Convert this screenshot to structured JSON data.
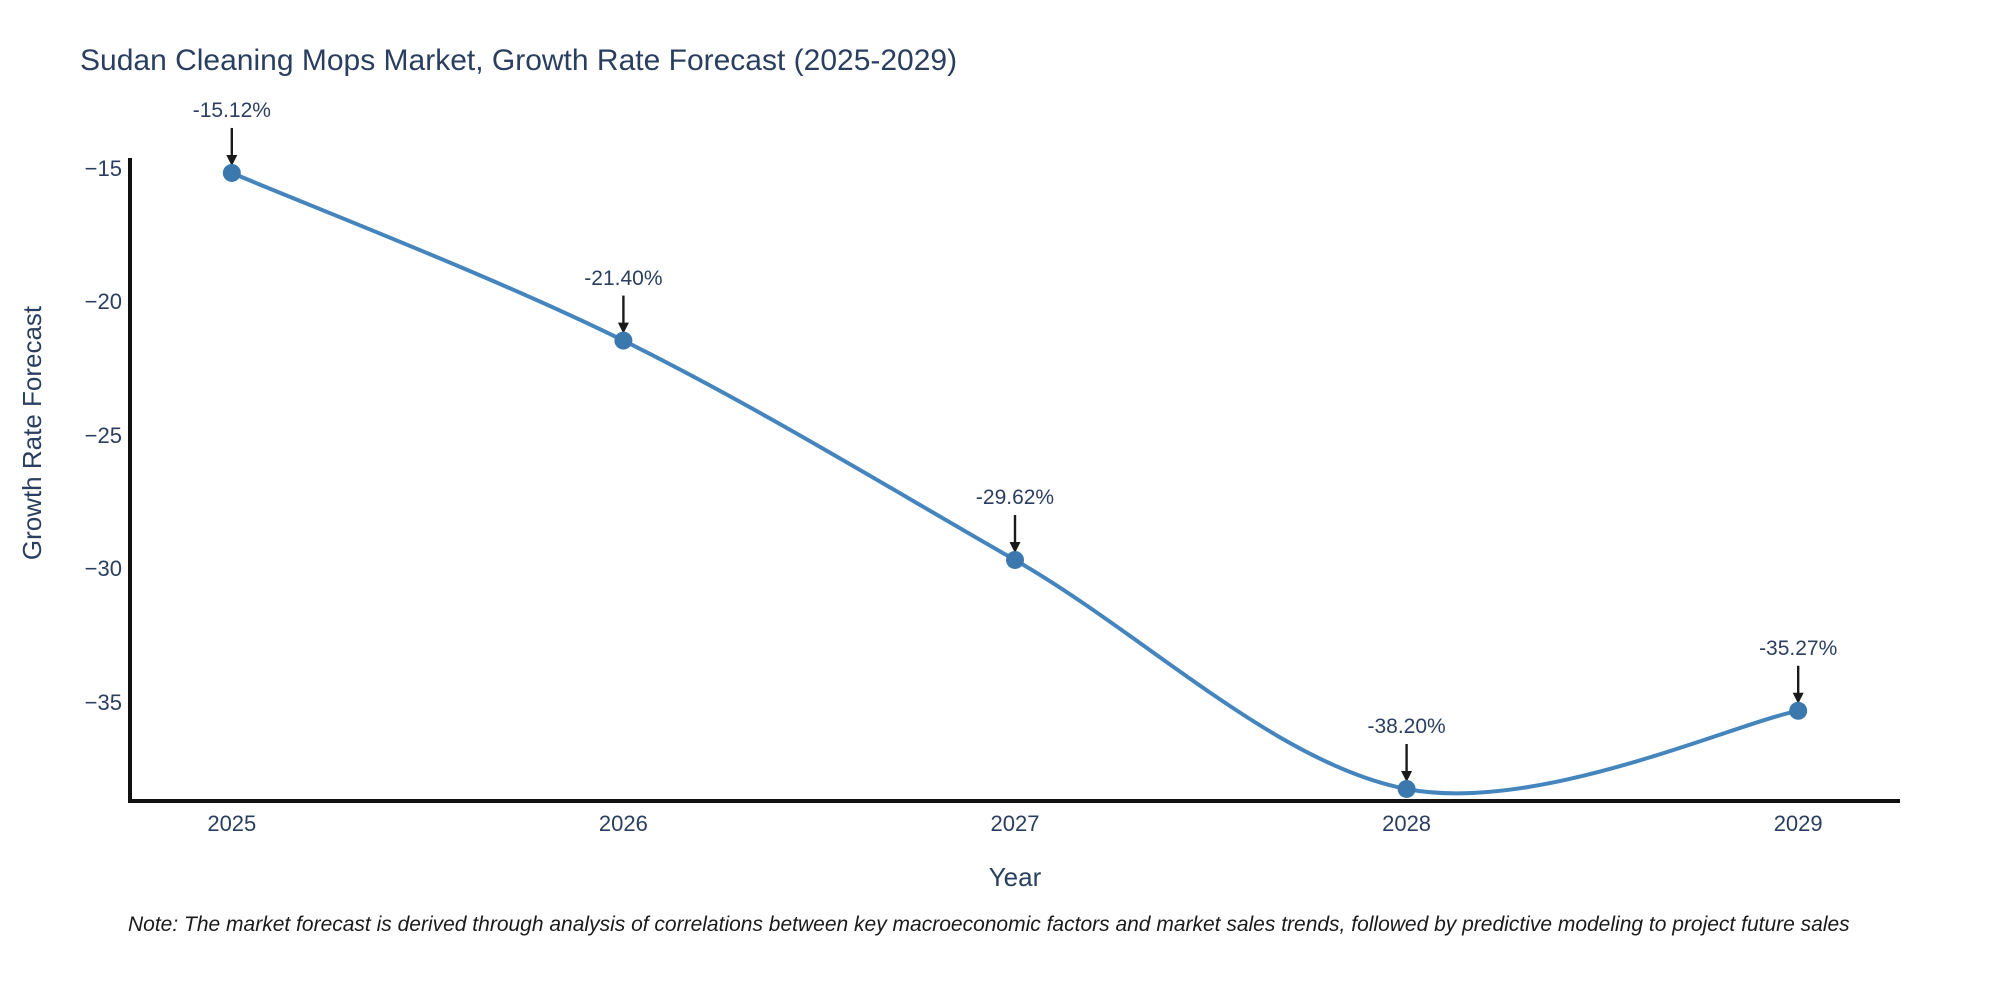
{
  "chart_data": {
    "type": "line",
    "title": "Sudan Cleaning Mops Market, Growth Rate Forecast (2025-2029)",
    "xlabel": "Year",
    "ylabel": "Growth Rate Forecast",
    "x": [
      2025,
      2026,
      2027,
      2028,
      2029
    ],
    "values": [
      -15.12,
      -21.4,
      -29.62,
      -38.2,
      -35.27
    ],
    "point_labels": [
      "-15.12%",
      "-21.40%",
      "-29.62%",
      "-38.20%",
      "-35.27%"
    ],
    "series_name": "Growth Rate Forecast",
    "line_shape": "spline",
    "grid": false,
    "legend_position": "none",
    "xlim": [
      2024.74,
      2029.26
    ],
    "ylim": [
      -38.65,
      -14.56
    ],
    "xticks": {
      "values": [
        2025,
        2026,
        2027,
        2028,
        2029
      ],
      "labels": [
        "2025",
        "2026",
        "2027",
        "2028",
        "2029"
      ]
    },
    "yticks": {
      "values": [
        -15,
        -20,
        -25,
        -30,
        -35
      ],
      "labels": [
        "−15",
        "−20",
        "−25",
        "−30",
        "−35"
      ]
    },
    "footnote": "Note: The market forecast is derived through analysis of correlations between key macroeconomic factors and market sales trends, followed by predictive modeling to project future sales",
    "colors": {
      "line": "#4585bd",
      "marker": "#3a78ae",
      "axis": "#111111",
      "text": "#2a3f5f",
      "annotation_arrow": "#1a1a1a",
      "background": "#ffffff"
    }
  }
}
